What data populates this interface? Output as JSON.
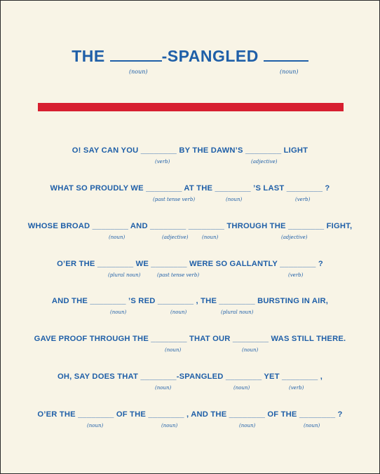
{
  "title": {
    "pre": "THE ",
    "mid": "-SPANGLED ",
    "hints": [
      "(noun)",
      "(noun)"
    ]
  },
  "lines": [
    {
      "text": "O! SAY CAN YOU ________ BY THE DAWN’S ________ LIGHT",
      "hints": [
        "(verb)",
        "(adjective)"
      ]
    },
    {
      "text": "WHAT SO PROUDLY WE ________ AT THE ________ ’S LAST ________ ?",
      "hints": [
        "(past tense verb)",
        "(noun)",
        "(verb)"
      ]
    },
    {
      "text": "WHOSE BROAD ________ AND ________ ________ THROUGH THE ________ FIGHT,",
      "hints": [
        "(noun)",
        "(adjective)",
        "(noun)",
        "(adjective)"
      ]
    },
    {
      "text": "O’ER THE ________ WE ________ WERE SO GALLANTLY ________ ?",
      "hints": [
        "(plural noun)",
        "(past tense verb)",
        "(verb)"
      ]
    },
    {
      "text": "AND THE ________ ’S RED ________ , THE ________ BURSTING IN AIR,",
      "hints": [
        "(noun)",
        "(noun)",
        "(plural noun)"
      ]
    },
    {
      "text": "GAVE PROOF THROUGH THE ________ THAT OUR ________ WAS STILL THERE.",
      "hints": [
        "(noun)",
        "(noun)"
      ]
    },
    {
      "text": "OH, SAY DOES THAT ________-SPANGLED ________ YET ________ ,",
      "hints": [
        "(noun)",
        "(noun)",
        "(verb)"
      ]
    },
    {
      "text": "O’ER THE ________ OF THE ________ , AND THE ________ OF THE ________ ?",
      "hints": [
        "(noun)",
        "(noun)",
        "(noun)",
        "(noun)"
      ]
    }
  ]
}
